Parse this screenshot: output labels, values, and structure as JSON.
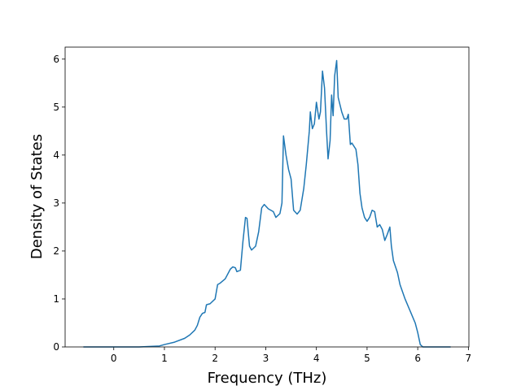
{
  "chart_data": {
    "type": "line",
    "xlabel": "Frequency (THz)",
    "ylabel": "Density of States",
    "x": [
      -0.6,
      0.5,
      0.9,
      1.0,
      1.2,
      1.4,
      1.5,
      1.6,
      1.65,
      1.7,
      1.75,
      1.8,
      1.83,
      1.9,
      2.0,
      2.05,
      2.1,
      2.2,
      2.3,
      2.35,
      2.4,
      2.43,
      2.5,
      2.55,
      2.6,
      2.63,
      2.68,
      2.72,
      2.8,
      2.86,
      2.92,
      2.97,
      3.05,
      3.15,
      3.2,
      3.28,
      3.32,
      3.35,
      3.4,
      3.45,
      3.5,
      3.55,
      3.62,
      3.68,
      3.75,
      3.8,
      3.86,
      3.88,
      3.92,
      3.96,
      4.0,
      4.05,
      4.08,
      4.12,
      4.16,
      4.2,
      4.23,
      4.27,
      4.3,
      4.33,
      4.36,
      4.4,
      4.43,
      4.5,
      4.55,
      4.6,
      4.63,
      4.67,
      4.7,
      4.78,
      4.82,
      4.86,
      4.9,
      4.95,
      5.0,
      5.05,
      5.1,
      5.15,
      5.2,
      5.25,
      5.3,
      5.35,
      5.4,
      5.45,
      5.48,
      5.52,
      5.6,
      5.65,
      5.75,
      5.85,
      5.95,
      6.0,
      6.05,
      6.1,
      6.65
    ],
    "series": [
      {
        "color": "#1f77b4",
        "values": [
          0,
          0,
          0.02,
          0.05,
          0.1,
          0.18,
          0.25,
          0.35,
          0.45,
          0.62,
          0.7,
          0.72,
          0.88,
          0.9,
          1.0,
          1.3,
          1.33,
          1.42,
          1.62,
          1.67,
          1.65,
          1.57,
          1.6,
          2.2,
          2.7,
          2.68,
          2.1,
          2.02,
          2.1,
          2.4,
          2.9,
          2.97,
          2.88,
          2.82,
          2.7,
          2.78,
          3.0,
          4.4,
          4.0,
          3.7,
          3.5,
          2.85,
          2.77,
          2.85,
          3.3,
          3.8,
          4.5,
          4.9,
          4.55,
          4.65,
          5.1,
          4.75,
          4.9,
          5.75,
          5.4,
          4.5,
          3.92,
          4.3,
          5.25,
          4.82,
          5.65,
          5.97,
          5.2,
          4.9,
          4.75,
          4.75,
          4.85,
          4.22,
          4.25,
          4.12,
          3.8,
          3.2,
          2.9,
          2.7,
          2.62,
          2.7,
          2.85,
          2.82,
          2.5,
          2.55,
          2.45,
          2.22,
          2.35,
          2.5,
          2.1,
          1.8,
          1.55,
          1.3,
          1.0,
          0.75,
          0.5,
          0.3,
          0.05,
          0,
          0
        ]
      }
    ],
    "xlim": [
      -0.96,
      7.01
    ],
    "ylim": [
      0,
      6.25
    ],
    "xticks": [
      0,
      1,
      2,
      3,
      4,
      5,
      6,
      7
    ],
    "yticks": [
      0,
      1,
      2,
      3,
      4,
      5,
      6
    ]
  }
}
